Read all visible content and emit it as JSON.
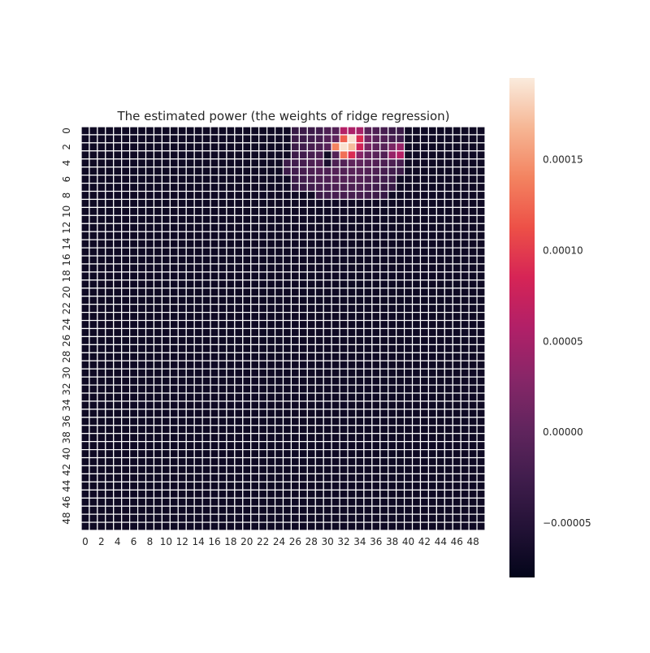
{
  "chart_data": {
    "type": "heatmap",
    "title": "The estimated power (the weights of ridge regression)",
    "xlabel": "",
    "ylabel": "",
    "n_rows": 50,
    "n_cols": 50,
    "x_tick_labels": [
      "0",
      "2",
      "4",
      "6",
      "8",
      "10",
      "12",
      "14",
      "16",
      "18",
      "20",
      "22",
      "24",
      "26",
      "28",
      "30",
      "32",
      "34",
      "36",
      "38",
      "40",
      "42",
      "44",
      "46",
      "48"
    ],
    "y_tick_labels": [
      "0",
      "2",
      "4",
      "6",
      "8",
      "10",
      "12",
      "14",
      "16",
      "18",
      "20",
      "22",
      "24",
      "26",
      "28",
      "30",
      "32",
      "34",
      "36",
      "38",
      "40",
      "42",
      "44",
      "46",
      "48"
    ],
    "colorbar": {
      "vmin": -8e-05,
      "vmax": 0.000195,
      "tick_values": [
        -5e-05,
        0.0,
        5e-05,
        0.0001,
        0.00015
      ],
      "tick_labels": [
        "−0.00005",
        "0.00000",
        "0.00005",
        "0.00010",
        "0.00015"
      ]
    },
    "colormap": "rocket",
    "grid_line_color": "#ffffff",
    "background_value": -7e-05,
    "region": {
      "description_value_grid": "rows 0-9, cols 24-40 (estimated); all other cells = background_value",
      "rows": [
        {
          "row": 0,
          "start_col": 24,
          "values": [
            -7e-05,
            -7e-05,
            -3.5e-05,
            -3e-05,
            -3e-05,
            -2.5e-05,
            -1.5e-05,
            -1e-05,
            6e-05,
            5.5e-05,
            5e-05,
            -5e-06,
            -1.5e-05,
            -2e-05,
            -3e-05,
            -3e-05,
            -7e-05
          ]
        },
        {
          "row": 1,
          "start_col": 24,
          "values": [
            -7e-05,
            -7e-05,
            -3e-05,
            -3e-05,
            -2.5e-05,
            -2e-05,
            -1e-05,
            0.0,
            0.00012,
            0.00019,
            9e-05,
            1.5e-05,
            -5e-06,
            -1e-05,
            -2e-05,
            -2.5e-05,
            -7e-05
          ]
        },
        {
          "row": 2,
          "start_col": 24,
          "values": [
            -7e-05,
            -7e-05,
            -3e-05,
            -2.5e-05,
            -2e-05,
            -1.5e-05,
            -5e-06,
            0.00014,
            0.00019,
            0.00017,
            8e-05,
            2e-05,
            0.0,
            -5e-06,
            2e-05,
            4e-05,
            -7e-05
          ]
        },
        {
          "row": 3,
          "start_col": 24,
          "values": [
            -7e-05,
            -7e-05,
            -3e-05,
            -2.5e-05,
            -2e-05,
            -1.5e-05,
            -7e-05,
            -1e-05,
            0.00013,
            9e-05,
            3e-05,
            5e-06,
            -5e-06,
            -1e-05,
            4e-05,
            6e-05,
            -7e-05
          ]
        },
        {
          "row": 4,
          "start_col": 24,
          "values": [
            -7e-05,
            -3e-05,
            -2.5e-05,
            -2e-05,
            -1.5e-05,
            -1e-05,
            -6e-05,
            -1.5e-05,
            -1e-05,
            0.0,
            0.0,
            -5e-06,
            -1e-05,
            -1.5e-05,
            -1.5e-05,
            -2e-05,
            -7e-05
          ]
        },
        {
          "row": 5,
          "start_col": 24,
          "values": [
            -7e-05,
            -3e-05,
            -2.5e-05,
            -2e-05,
            -1.5e-05,
            -1e-05,
            -1.5e-05,
            -1e-05,
            -1e-05,
            -5e-06,
            -5e-06,
            -1e-05,
            -1.5e-05,
            -2e-05,
            -2.5e-05,
            -3e-05,
            -7e-05
          ]
        },
        {
          "row": 6,
          "start_col": 24,
          "values": [
            -7e-05,
            -7e-05,
            -3e-05,
            -2.5e-05,
            -2e-05,
            -1.5e-05,
            -1.5e-05,
            -1e-05,
            -1e-05,
            -1e-05,
            -1e-05,
            -1.5e-05,
            -2e-05,
            -2.5e-05,
            -3e-05,
            -7e-05,
            -7e-05
          ]
        },
        {
          "row": 7,
          "start_col": 24,
          "values": [
            -7e-05,
            -7e-05,
            -3.5e-05,
            -3e-05,
            -2.5e-05,
            -2e-05,
            -2e-05,
            -1.5e-05,
            -1.5e-05,
            -1.5e-05,
            -1.5e-05,
            -2e-05,
            -2.5e-05,
            -3e-05,
            -3.5e-05,
            -7e-05,
            -7e-05
          ]
        },
        {
          "row": 8,
          "start_col": 24,
          "values": [
            -7e-05,
            -7e-05,
            -7e-05,
            -7e-05,
            -7e-05,
            -3e-05,
            -2.5e-05,
            -2e-05,
            -2e-05,
            -2e-05,
            -2e-05,
            -2.5e-05,
            -3e-05,
            -3.5e-05,
            -7e-05,
            -7e-05,
            -7e-05
          ]
        },
        {
          "row": 9,
          "start_col": 24,
          "values": [
            -7e-05,
            -7e-05,
            -7e-05,
            -7e-05,
            -7e-05,
            -7e-05,
            -7e-05,
            -7e-05,
            -7e-05,
            -7e-05,
            -7e-05,
            -7e-05,
            -7e-05,
            -7e-05,
            -7e-05,
            -7e-05,
            -7e-05
          ]
        }
      ]
    },
    "legend": "colorbar-right"
  }
}
